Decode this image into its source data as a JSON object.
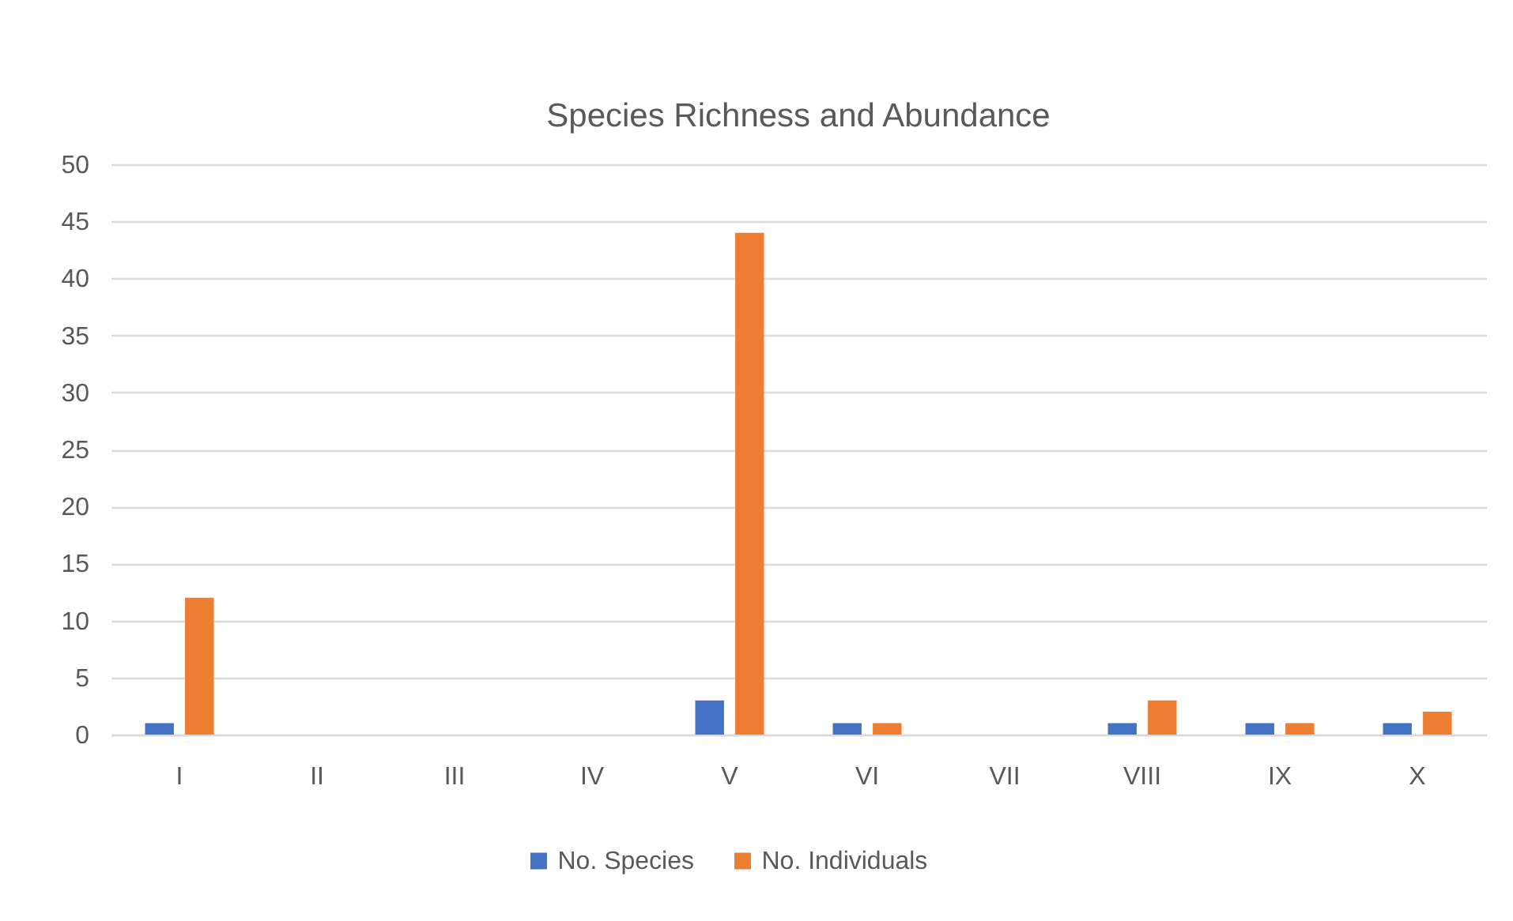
{
  "chart_data": {
    "type": "bar",
    "title": "Species Richness and Abundance",
    "categories": [
      "I",
      "II",
      "III",
      "IV",
      "V",
      "VI",
      "VII",
      "VIII",
      "IX",
      "X"
    ],
    "series": [
      {
        "name": "No. Species",
        "color": "#4472c4",
        "values": [
          1,
          0,
          0,
          0,
          3,
          1,
          0,
          1,
          1,
          1
        ]
      },
      {
        "name": "No. Individuals",
        "color": "#ed7d31",
        "values": [
          12,
          0,
          0,
          0,
          44,
          1,
          0,
          3,
          1,
          2
        ]
      }
    ],
    "ylim": [
      0,
      50
    ],
    "yticks": [
      0,
      5,
      10,
      15,
      20,
      25,
      30,
      35,
      40,
      45,
      50
    ],
    "grid": "y",
    "legend": "bottom"
  }
}
